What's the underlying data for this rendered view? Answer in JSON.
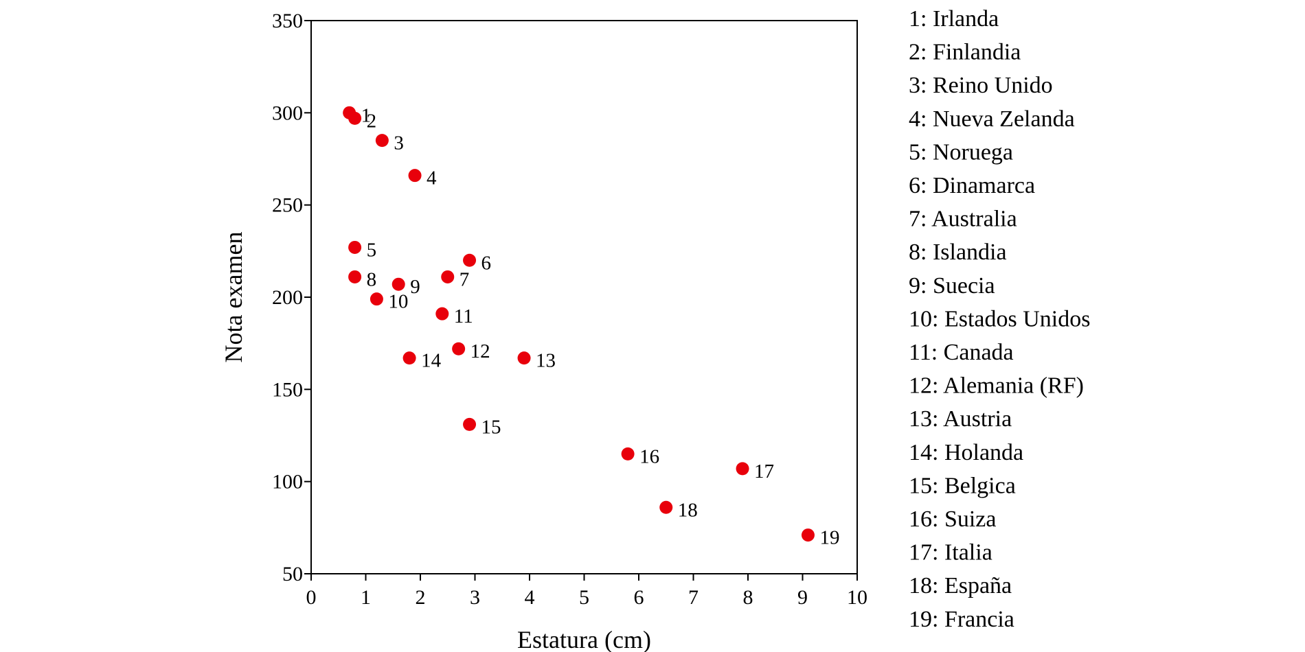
{
  "chart_data": {
    "type": "scatter",
    "xlabel": "Estatura (cm)",
    "ylabel": "Nota examen",
    "xlim": [
      0,
      10
    ],
    "ylim": [
      50,
      350
    ],
    "xticks": [
      0,
      1,
      2,
      3,
      4,
      5,
      6,
      7,
      8,
      9,
      10
    ],
    "yticks": [
      50,
      100,
      150,
      200,
      250,
      300,
      350
    ],
    "grid": false,
    "legend_position": "right",
    "point_color": "#e8000b",
    "points": [
      {
        "label": "1",
        "x": 0.7,
        "y": 300
      },
      {
        "label": "2",
        "x": 0.8,
        "y": 297
      },
      {
        "label": "3",
        "x": 1.3,
        "y": 285
      },
      {
        "label": "4",
        "x": 1.9,
        "y": 266
      },
      {
        "label": "5",
        "x": 0.8,
        "y": 227
      },
      {
        "label": "6",
        "x": 2.9,
        "y": 220
      },
      {
        "label": "7",
        "x": 2.5,
        "y": 211
      },
      {
        "label": "8",
        "x": 0.8,
        "y": 211
      },
      {
        "label": "9",
        "x": 1.6,
        "y": 207
      },
      {
        "label": "10",
        "x": 1.2,
        "y": 199
      },
      {
        "label": "11",
        "x": 2.4,
        "y": 191
      },
      {
        "label": "12",
        "x": 2.7,
        "y": 172
      },
      {
        "label": "13",
        "x": 3.9,
        "y": 167
      },
      {
        "label": "14",
        "x": 1.8,
        "y": 167
      },
      {
        "label": "15",
        "x": 2.9,
        "y": 131
      },
      {
        "label": "16",
        "x": 5.8,
        "y": 115
      },
      {
        "label": "17",
        "x": 7.9,
        "y": 107
      },
      {
        "label": "18",
        "x": 6.5,
        "y": 86
      },
      {
        "label": "19",
        "x": 9.1,
        "y": 71
      }
    ],
    "legend": [
      "1: Irlanda",
      "2: Finlandia",
      "3: Reino Unido",
      "4: Nueva Zelanda",
      "5: Noruega",
      "6: Dinamarca",
      "7: Australia",
      "8: Islandia",
      "9: Suecia",
      "10: Estados Unidos",
      "11: Canada",
      "12: Alemania (RF)",
      "13: Austria",
      "14: Holanda",
      "15: Belgica",
      "16: Suiza",
      "17: Italia",
      "18: España",
      "19: Francia"
    ]
  }
}
